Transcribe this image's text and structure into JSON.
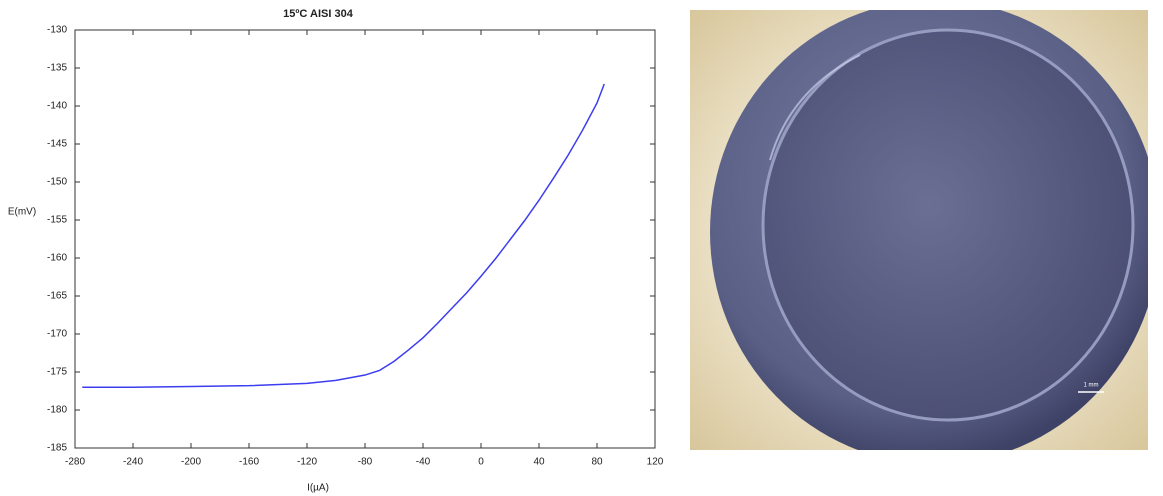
{
  "chart_data": {
    "type": "line",
    "title": "15ºC AISI 304",
    "x_label": "I(µA)",
    "y_label": "E(mV)",
    "x": [
      -275,
      -240,
      -200,
      -160,
      -120,
      -100,
      -80,
      -70,
      -60,
      -50,
      -40,
      -30,
      -20,
      -10,
      0,
      10,
      20,
      30,
      40,
      50,
      60,
      70,
      80,
      85
    ],
    "series": [
      {
        "color": "#3c3cf0",
        "values": [
          -177,
          -177,
          -176.9,
          -176.8,
          -176.5,
          -176.1,
          -175.4,
          -174.8,
          -173.6,
          -172.1,
          -170.5,
          -168.6,
          -166.6,
          -164.6,
          -162.4,
          -160.1,
          -157.6,
          -155.1,
          -152.4,
          -149.5,
          -146.5,
          -143.2,
          -139.6,
          -137.1
        ]
      }
    ],
    "xlim": [
      -280,
      120
    ],
    "xticks": [
      -280,
      -240,
      -200,
      -160,
      -120,
      -80,
      -40,
      0,
      40,
      80,
      120
    ],
    "ylim": [
      -185,
      -130
    ],
    "yticks": [
      -185,
      -180,
      -175,
      -170,
      -165,
      -160,
      -155,
      -150,
      -145,
      -140,
      -135,
      -130
    ],
    "grid": false
  },
  "photo": {
    "scale_label": "1 mm"
  }
}
